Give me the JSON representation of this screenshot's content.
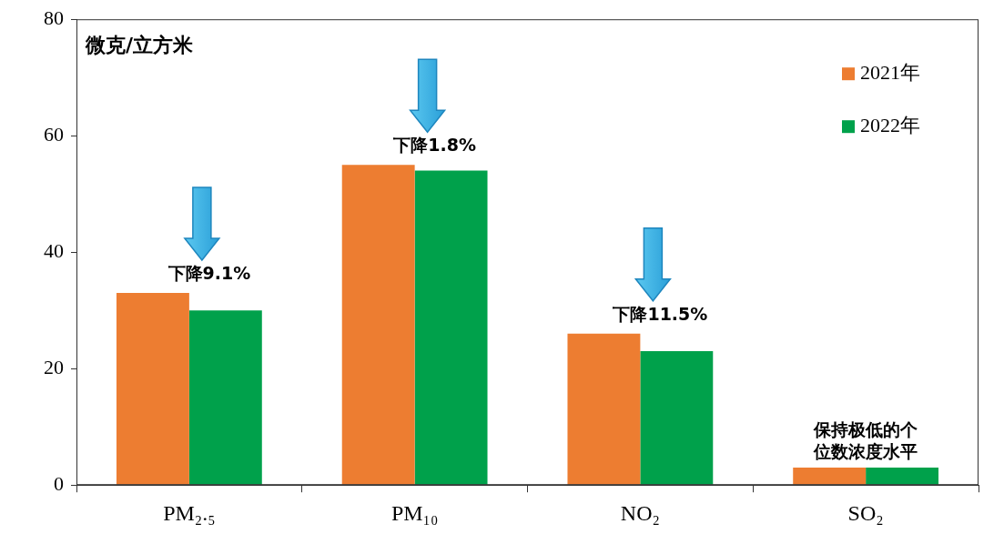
{
  "chart_data": {
    "type": "bar",
    "y_label": "微克/立方米",
    "categories": [
      "PM₂.₅",
      "PM₁₀",
      "NO₂",
      "SO₂"
    ],
    "series": [
      {
        "name": "2021年",
        "color": "#ED7D31",
        "values": [
          33,
          55,
          26,
          3
        ]
      },
      {
        "name": "2022年",
        "color": "#00A14B",
        "values": [
          30,
          54,
          23,
          3
        ]
      }
    ],
    "ylim": [
      0,
      80
    ],
    "yticks": [
      0,
      20,
      40,
      60,
      80
    ],
    "grid": false,
    "legend": "upper right",
    "annotations": [
      {
        "category": "PM₂.₅",
        "text": "下降9.1%"
      },
      {
        "category": "PM₁₀",
        "text": "下降1.8%"
      },
      {
        "category": "NO₂",
        "text": "下降11.5%"
      },
      {
        "category": "SO₂",
        "text": [
          "保持极低的个",
          "位数浓度水平"
        ]
      }
    ]
  }
}
